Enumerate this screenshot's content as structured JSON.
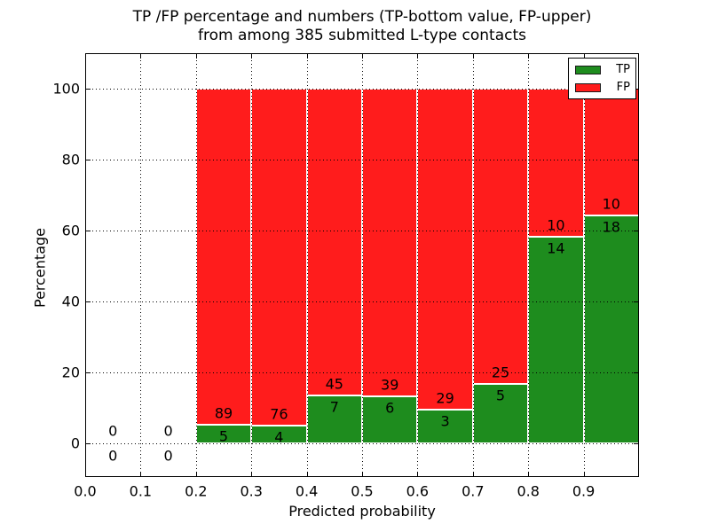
{
  "figure": {
    "title_line1": "TP /FP percentage and numbers (TP-bottom value, FP-upper)",
    "title_line2": "from among 385 submitted L-type contacts"
  },
  "chart_data": {
    "type": "bar",
    "stacked": true,
    "title": "TP /FP percentage and numbers (TP-bottom value, FP-upper)\nfrom among 385 submitted L-type contacts",
    "xlabel": "Predicted probability",
    "ylabel": "Percentage",
    "xlim": [
      0.0,
      1.0
    ],
    "ylim": [
      -9.5,
      110
    ],
    "x_tick_values": [
      0.0,
      0.1,
      0.2,
      0.3,
      0.4,
      0.5,
      0.6,
      0.7,
      0.8,
      0.9
    ],
    "x_tick_labels": [
      "0.0",
      "0.1",
      "0.2",
      "0.3",
      "0.4",
      "0.5",
      "0.6",
      "0.7",
      "0.8",
      "0.9"
    ],
    "y_tick_values": [
      0,
      20,
      40,
      60,
      80,
      100
    ],
    "y_tick_labels": [
      "0",
      "20",
      "40",
      "60",
      "80",
      "100"
    ],
    "grid": "dotted",
    "legend_position": "upper right",
    "total_submitted": 385,
    "series": [
      {
        "name": "TP",
        "color": "#1e8c1e"
      },
      {
        "name": "FP",
        "color": "#ff1c1c"
      }
    ],
    "bins": [
      {
        "range": [
          0.0,
          0.1
        ],
        "tp_count": 0,
        "fp_count": 0,
        "tp_pct": 0,
        "fp_pct": 0
      },
      {
        "range": [
          0.1,
          0.2
        ],
        "tp_count": 0,
        "fp_count": 0,
        "tp_pct": 0,
        "fp_pct": 0
      },
      {
        "range": [
          0.2,
          0.3
        ],
        "tp_count": 5,
        "fp_count": 89,
        "tp_pct": 5.32,
        "fp_pct": 94.68
      },
      {
        "range": [
          0.3,
          0.4
        ],
        "tp_count": 4,
        "fp_count": 76,
        "tp_pct": 5.0,
        "fp_pct": 95.0
      },
      {
        "range": [
          0.4,
          0.5
        ],
        "tp_count": 7,
        "fp_count": 45,
        "tp_pct": 13.46,
        "fp_pct": 86.54
      },
      {
        "range": [
          0.5,
          0.6
        ],
        "tp_count": 6,
        "fp_count": 39,
        "tp_pct": 13.33,
        "fp_pct": 86.67
      },
      {
        "range": [
          0.6,
          0.7
        ],
        "tp_count": 3,
        "fp_count": 29,
        "tp_pct": 9.38,
        "fp_pct": 90.62
      },
      {
        "range": [
          0.7,
          0.8
        ],
        "tp_count": 5,
        "fp_count": 25,
        "tp_pct": 16.67,
        "fp_pct": 83.33
      },
      {
        "range": [
          0.8,
          0.9
        ],
        "tp_count": 14,
        "fp_count": 10,
        "tp_pct": 58.33,
        "fp_pct": 41.67
      },
      {
        "range": [
          0.9,
          1.0
        ],
        "tp_count": 18,
        "fp_count": 10,
        "tp_pct": 64.29,
        "fp_pct": 35.71
      }
    ]
  },
  "legend": {
    "entries": [
      {
        "label": "TP",
        "color": "#1e8c1e"
      },
      {
        "label": "FP",
        "color": "#ff1c1c"
      }
    ]
  },
  "colors": {
    "tp": "#1e8c1e",
    "fp": "#ff1c1c",
    "bar_edge": "#ffffff",
    "grid": "#000000",
    "frame": "#000000",
    "background": "#ffffff"
  }
}
